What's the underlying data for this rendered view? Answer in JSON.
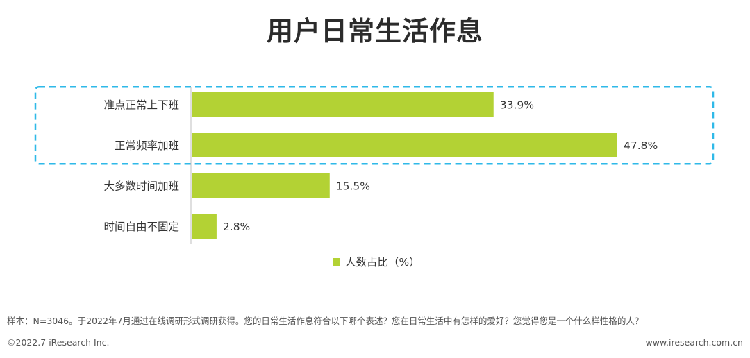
{
  "page": {
    "title": "用户日常生活作息",
    "footnote": "样本：N=3046。于2022年7月通过在线调研形式调研获得。您的日常生活作息符合以下哪个表述？您在日常生活中有怎样的爱好？您觉得您是一个什么样性格的人？",
    "copyright": "©2022.7 iResearch Inc.",
    "website": "www.iresearch.com.cn"
  },
  "chart_data": {
    "type": "bar",
    "orientation": "horizontal",
    "categories": [
      "准点正常上下班",
      "正常频率加班",
      "大多数时间加班",
      "时间自由不固定"
    ],
    "series": [
      {
        "name": "人数占比（%）",
        "values": [
          33.9,
          47.8,
          15.5,
          2.8
        ],
        "labels": [
          "33.9%",
          "47.8%",
          "15.5%",
          "2.8%"
        ]
      }
    ],
    "xlim": [
      0,
      47.8
    ],
    "grid": false,
    "legend_position": "bottom",
    "highlight": [
      "准点正常上下班",
      "正常频率加班"
    ],
    "colors": {
      "bar": "#b3d234",
      "highlight_border": "#2fb9e8",
      "axis": "#bfbfbf"
    }
  }
}
